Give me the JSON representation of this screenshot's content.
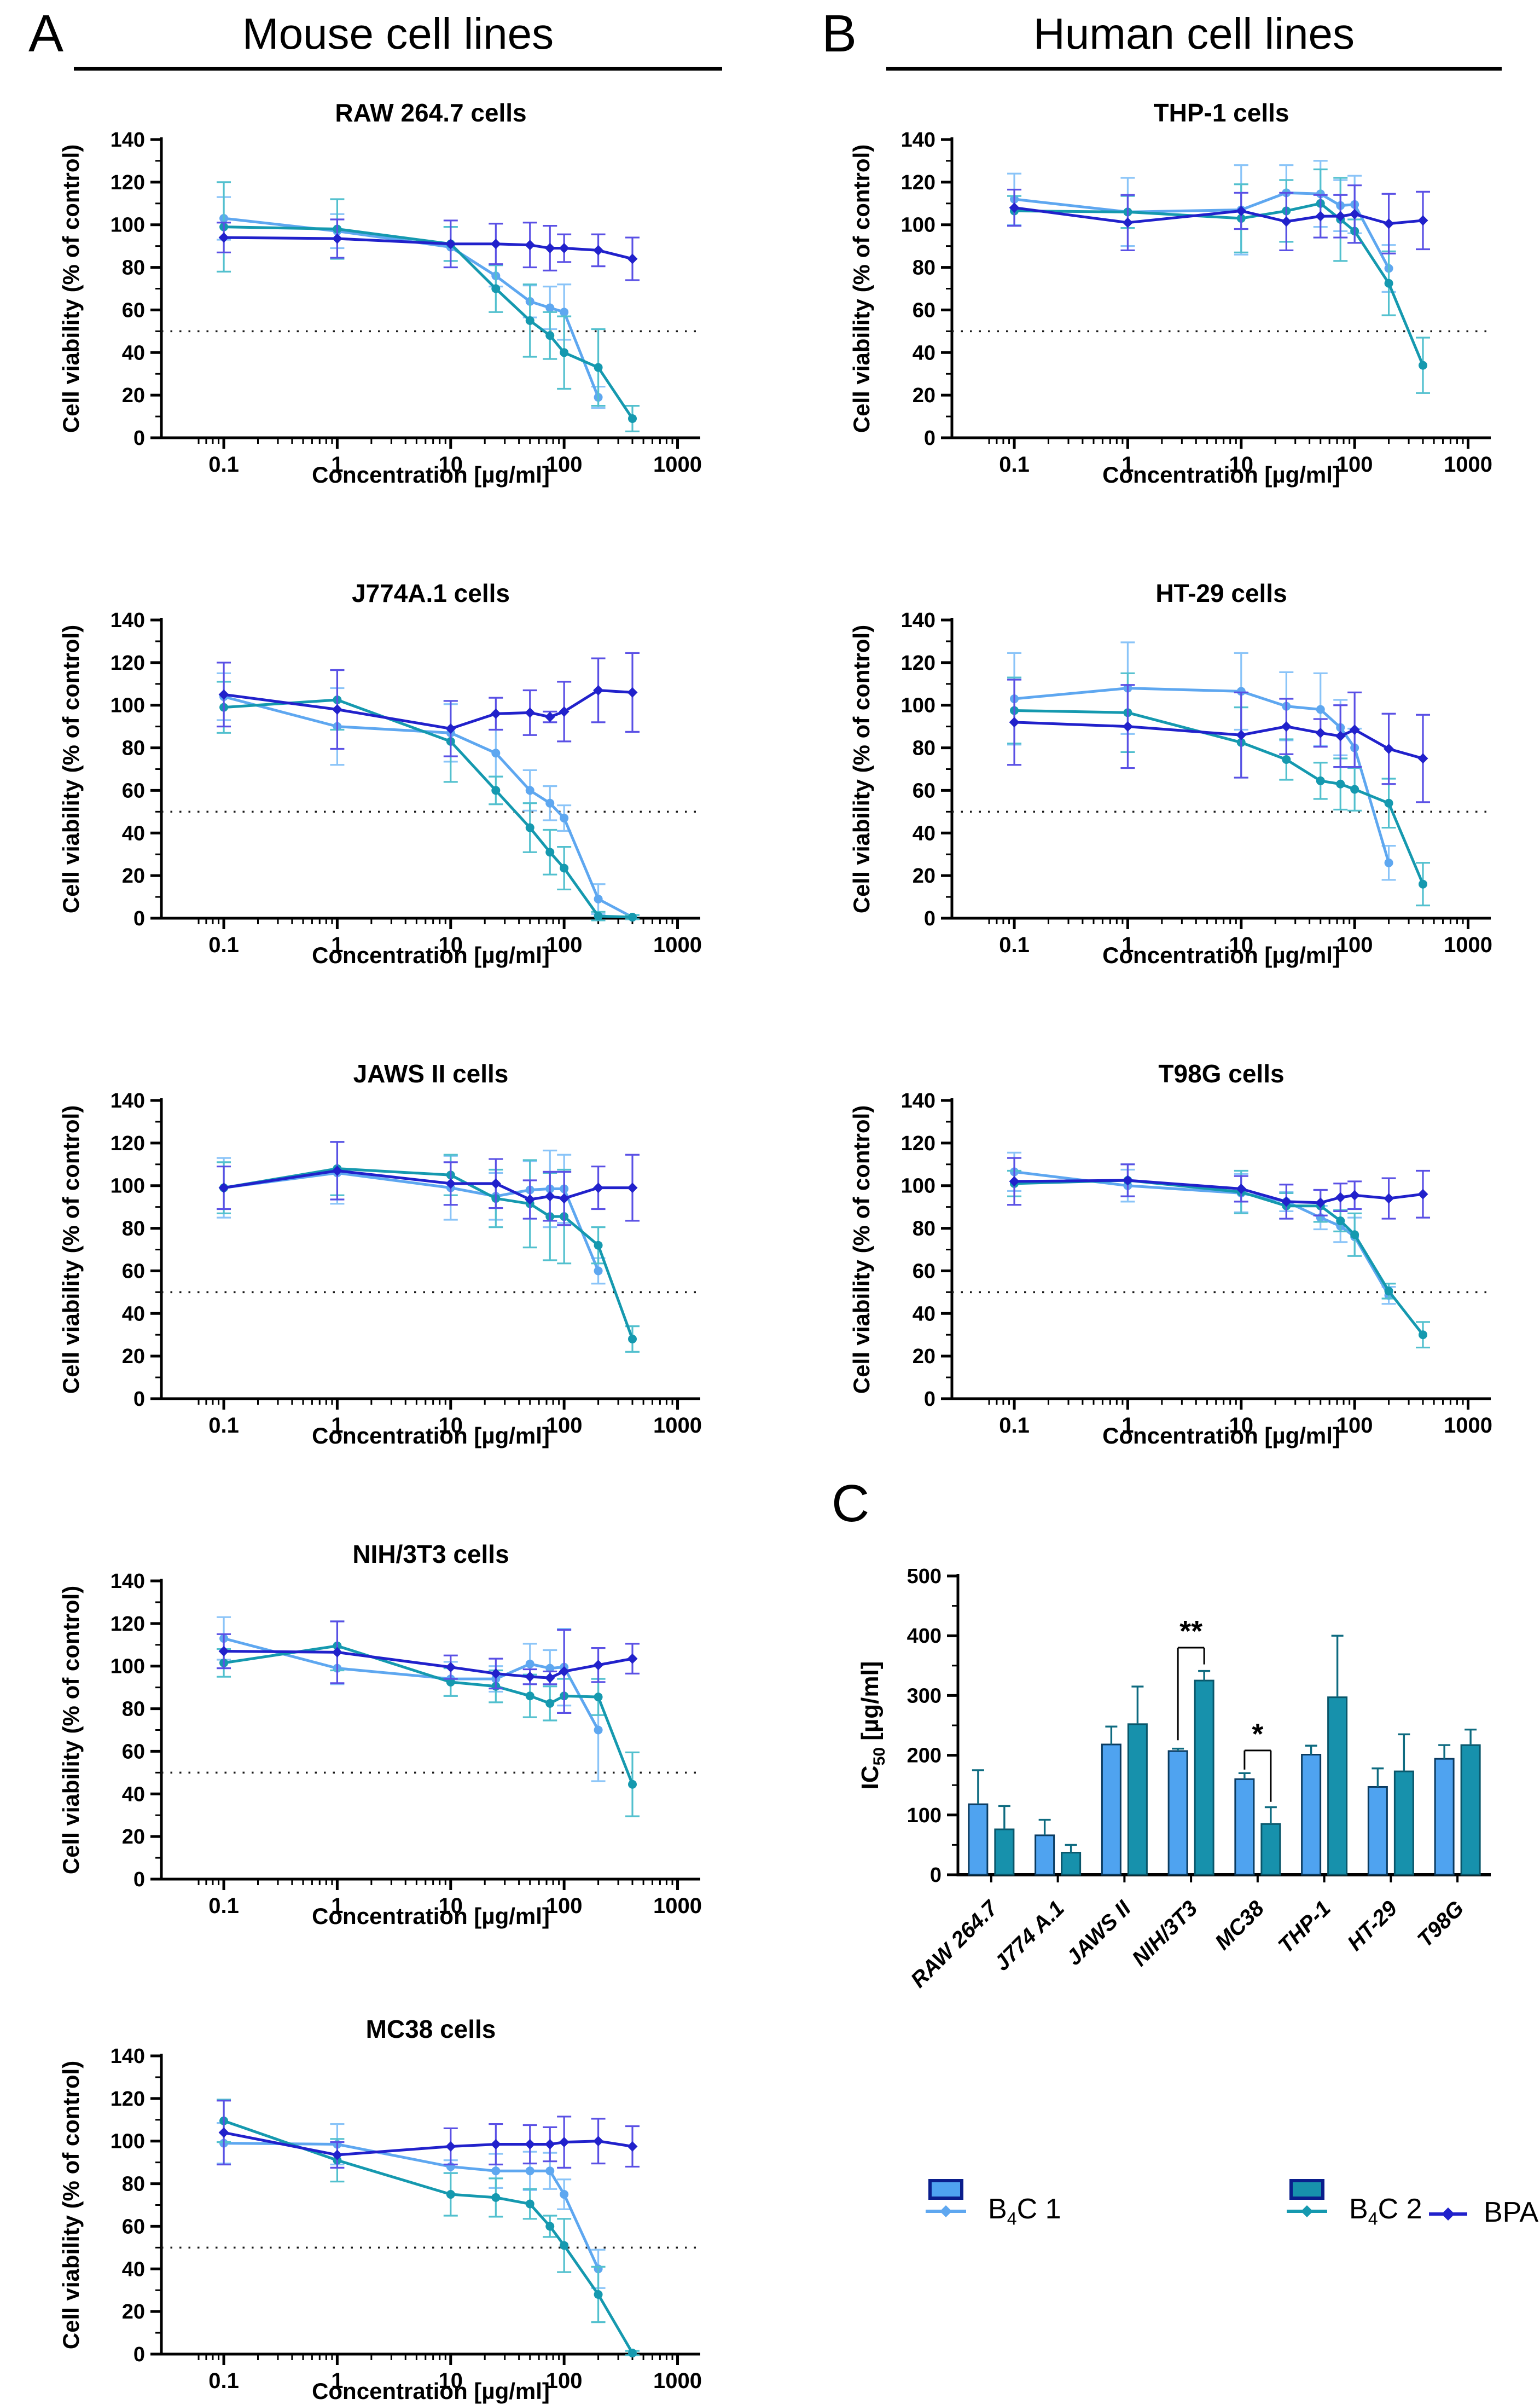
{
  "panels": {
    "a": {
      "letter": "A",
      "title": "Mouse cell lines"
    },
    "b": {
      "letter": "B",
      "title": "Human cell lines"
    },
    "c": {
      "letter": "C"
    }
  },
  "series_styles": {
    "b4c1": {
      "label": "B4C 1",
      "color": "#5EA7F0",
      "err_color": "#8AC4F8",
      "marker": "circle",
      "bar_fill": "#4FA3F0",
      "bar_stroke": "#0A3B60"
    },
    "b4c2": {
      "label": "B4C 2",
      "color": "#1599AF",
      "err_color": "#52C0CE",
      "marker": "circle",
      "bar_fill": "#1791AC",
      "bar_stroke": "#09566A"
    },
    "bpa": {
      "label": "BPA",
      "color": "#2121CB",
      "err_color": "#5A50E5",
      "marker": "diamond"
    }
  },
  "legend": {
    "items": [
      {
        "key": "b4c1",
        "pre": "B",
        "sub": "4",
        "post": "C 1",
        "swatch": true
      },
      {
        "key": "b4c2",
        "pre": "B",
        "sub": "4",
        "post": "C 2",
        "swatch": true
      },
      {
        "key": "bpa",
        "pre": "BPA",
        "sub": "",
        "post": "",
        "swatch": false
      }
    ]
  },
  "chart_data": {
    "line_defaults": {
      "type": "line",
      "xlabel": "Concentration [µg/ml]",
      "ylabel": "Cell viability (% of control)",
      "xscale": "log",
      "xlim": [
        0.1,
        1000
      ],
      "xticks": [
        "0.1",
        "1",
        "10",
        "100",
        "1000"
      ],
      "ylim": [
        0,
        140
      ],
      "ytick_step": 20,
      "dotted_line_y": 50,
      "grid": false
    },
    "line_charts": [
      {
        "id": "raw-264-7",
        "panel": "A",
        "title": "RAW 264.7 cells",
        "series": [
          {
            "key": "b4c1",
            "x": [
              0.1,
              1,
              10,
              25,
              50,
              75,
              100,
              200
            ],
            "y": [
              103,
              97,
              89.5,
              76,
              64,
              61,
              59,
              19
            ],
            "err": [
              10,
              8,
              9.5,
              5,
              7.5,
              10,
              13,
              5
            ]
          },
          {
            "key": "b4c2",
            "x": [
              0.1,
              1,
              10,
              25,
              50,
              75,
              100,
              200,
              400
            ],
            "y": [
              99,
              98,
              91,
              70,
              55,
              48,
              40,
              33,
              9
            ],
            "err": [
              21,
              14,
              8,
              11,
              17,
              11,
              17,
              18,
              6
            ]
          },
          {
            "key": "bpa",
            "x": [
              0.1,
              1,
              10,
              25,
              50,
              75,
              100,
              200,
              400
            ],
            "y": [
              94,
              93.5,
              91,
              91,
              90.5,
              89,
              89,
              88,
              84
            ],
            "err": [
              7,
              9,
              11,
              9.5,
              10.5,
              10.5,
              6.5,
              7.5,
              10
            ]
          }
        ]
      },
      {
        "id": "j774a-1",
        "panel": "A",
        "title": "J774A.1 cells",
        "series": [
          {
            "key": "b4c1",
            "x": [
              0.1,
              1,
              10,
              25,
              50,
              75,
              100,
              200,
              400
            ],
            "y": [
              104,
              90,
              87,
              77.5,
              60,
              54,
              47,
              9,
              0.5
            ],
            "err": [
              11,
              18,
              13.5,
              11,
              9.5,
              8,
              6,
              7,
              1
            ]
          },
          {
            "key": "b4c2",
            "x": [
              0.1,
              1,
              10,
              25,
              50,
              75,
              100,
              200,
              400
            ],
            "y": [
              99,
              102.5,
              83,
              60,
              42.5,
              31,
              23.5,
              1,
              0.5
            ],
            "err": [
              12,
              14,
              19,
              6.5,
              11.5,
              10.5,
              10,
              2,
              1
            ]
          },
          {
            "key": "bpa",
            "x": [
              0.1,
              1,
              10,
              25,
              50,
              75,
              100,
              200,
              400
            ],
            "y": [
              105,
              98,
              89,
              96,
              96.5,
              94.5,
              97,
              107,
              106
            ],
            "err": [
              15,
              18.5,
              13,
              7.5,
              10.5,
              2.5,
              14,
              15,
              18.5
            ]
          }
        ]
      },
      {
        "id": "jaws-ii",
        "panel": "A",
        "title": "JAWS II cells",
        "series": [
          {
            "key": "b4c1",
            "x": [
              0.1,
              1,
              10,
              25,
              50,
              75,
              100,
              200
            ],
            "y": [
              99,
              106,
              99,
              95,
              98,
              98.5,
              98.5,
              60
            ],
            "err": [
              14,
              14.5,
              15,
              11,
              13.5,
              18,
              16,
              6
            ]
          },
          {
            "key": "b4c2",
            "x": [
              0.1,
              1,
              10,
              25,
              50,
              75,
              100,
              200,
              400
            ],
            "y": [
              99,
              108,
              105,
              94,
              91.5,
              85.5,
              85.5,
              72,
              28
            ],
            "err": [
              12,
              12.5,
              9.5,
              13.5,
              20.5,
              20.5,
              22,
              8.5,
              6
            ]
          },
          {
            "key": "bpa",
            "x": [
              0.1,
              1,
              10,
              25,
              50,
              75,
              100,
              200,
              400
            ],
            "y": [
              99,
              107,
              101,
              101,
              93.5,
              95,
              94,
              99,
              99
            ],
            "err": [
              10,
              13.5,
              10,
              11.5,
              9,
              11.5,
              12.5,
              10,
              15.5
            ]
          }
        ]
      },
      {
        "id": "nih-3t3",
        "panel": "A",
        "title": "NIH/3T3 cells",
        "series": [
          {
            "key": "b4c1",
            "x": [
              0.1,
              1,
              10,
              25,
              50,
              75,
              100,
              200
            ],
            "y": [
              113,
              99,
              94,
              94,
              101,
              99,
              99.5,
              70
            ],
            "err": [
              10,
              7.5,
              8,
              6,
              9.5,
              8.5,
              18,
              24
            ]
          },
          {
            "key": "b4c2",
            "x": [
              0.1,
              1,
              10,
              25,
              50,
              75,
              100,
              200,
              400
            ],
            "y": [
              101.5,
              109.5,
              92.5,
              90.5,
              86,
              82.5,
              86,
              85.5,
              44.5
            ],
            "err": [
              6.5,
              11.5,
              6.5,
              7.5,
              10,
              8,
              8,
              8.5,
              15
            ]
          },
          {
            "key": "bpa",
            "x": [
              0.1,
              1,
              10,
              25,
              50,
              75,
              100,
              200,
              400
            ],
            "y": [
              107,
              106.5,
              99.5,
              96.5,
              95,
              94.5,
              97.5,
              100.5,
              103.5
            ],
            "err": [
              8,
              14.5,
              5.5,
              7,
              3.5,
              3,
              19.5,
              8,
              7
            ]
          }
        ]
      },
      {
        "id": "mc38",
        "panel": "A",
        "title": "MC38 cells",
        "series": [
          {
            "key": "b4c1",
            "x": [
              0.1,
              1,
              10,
              25,
              50,
              75,
              100,
              200
            ],
            "y": [
              99,
              98.5,
              88,
              86,
              86,
              86,
              75,
              40
            ],
            "err": [
              9.5,
              9.5,
              3,
              8,
              9,
              8.5,
              7,
              9
            ]
          },
          {
            "key": "b4c2",
            "x": [
              0.1,
              1,
              10,
              25,
              50,
              75,
              100,
              200,
              400
            ],
            "y": [
              109.5,
              91,
              75,
              73.5,
              70.5,
              60,
              51,
              28,
              0.5
            ],
            "err": [
              10,
              10,
              10,
              9,
              7,
              5,
              12.5,
              13,
              1
            ]
          },
          {
            "key": "bpa",
            "x": [
              0.1,
              1,
              10,
              25,
              50,
              75,
              100,
              200,
              400
            ],
            "y": [
              104,
              93.5,
              97.5,
              98.5,
              98.5,
              98.5,
              99.5,
              100,
              97.5
            ],
            "err": [
              15,
              6,
              8.5,
              9.5,
              9,
              8,
              12,
              10.5,
              9.5
            ]
          }
        ]
      },
      {
        "id": "thp-1",
        "panel": "B",
        "title": "THP-1 cells",
        "series": [
          {
            "key": "b4c1",
            "x": [
              0.1,
              1,
              10,
              25,
              50,
              75,
              100,
              200
            ],
            "y": [
              112,
              106,
              107,
              115,
              114.5,
              109,
              109.5,
              79.5
            ],
            "err": [
              12,
              16,
              21,
              13,
              15.5,
              12,
              13.5,
              11
            ]
          },
          {
            "key": "b4c2",
            "x": [
              0.1,
              1,
              10,
              25,
              50,
              75,
              100,
              200,
              400
            ],
            "y": [
              106.5,
              106,
              103,
              106.5,
              110,
              102.5,
              97,
              72.5,
              34
            ],
            "err": [
              7,
              7.5,
              16,
              14.5,
              16,
              19.5,
              5.5,
              15,
              13
            ]
          },
          {
            "key": "bpa",
            "x": [
              0.1,
              1,
              10,
              25,
              50,
              75,
              100,
              200,
              400
            ],
            "y": [
              108,
              101,
              106.5,
              101.5,
              104,
              104,
              105,
              100.5,
              102
            ],
            "err": [
              8.5,
              13,
              8.5,
              13.5,
              10,
              10,
              13.5,
              14,
              13.5
            ]
          }
        ]
      },
      {
        "id": "ht-29",
        "panel": "B",
        "title": "HT-29 cells",
        "series": [
          {
            "key": "b4c1",
            "x": [
              0.1,
              1,
              10,
              25,
              50,
              75,
              100,
              200
            ],
            "y": [
              103,
              108,
              106.5,
              99.5,
              98,
              89.5,
              80,
              26
            ],
            "err": [
              21.5,
              21.5,
              18,
              16,
              17,
              13,
              9,
              8
            ]
          },
          {
            "key": "b4c2",
            "x": [
              0.1,
              1,
              10,
              25,
              50,
              75,
              100,
              200,
              400
            ],
            "y": [
              97.5,
              96.5,
              82.5,
              74.5,
              64.5,
              63,
              60.5,
              54,
              16
            ],
            "err": [
              15.5,
              18.5,
              16.5,
              9.5,
              8.5,
              12,
              10,
              11.5,
              10
            ]
          },
          {
            "key": "bpa",
            "x": [
              0.1,
              1,
              10,
              25,
              50,
              75,
              100,
              200,
              400
            ],
            "y": [
              92,
              90,
              86,
              90,
              87,
              85.5,
              88.5,
              79.5,
              75
            ],
            "err": [
              20,
              19.5,
              20,
              13,
              6.5,
              14.5,
              17.5,
              16.5,
              20.5
            ]
          }
        ]
      },
      {
        "id": "t98g",
        "panel": "B",
        "title": "T98G cells",
        "series": [
          {
            "key": "b4c1",
            "x": [
              0.1,
              1,
              10,
              25,
              50,
              75,
              100,
              200
            ],
            "y": [
              106.5,
              100,
              96.5,
              92.5,
              85,
              81,
              76,
              48.5
            ],
            "err": [
              9,
              7.5,
              9,
              4.5,
              5.5,
              7.5,
              9,
              4
            ]
          },
          {
            "key": "b4c2",
            "x": [
              0.1,
              1,
              10,
              25,
              50,
              75,
              100,
              200,
              400
            ],
            "y": [
              101,
              102.5,
              97,
              90.5,
              90.5,
              83.5,
              77,
              50.5,
              30
            ],
            "err": [
              6,
              7.5,
              10,
              6,
              7.5,
              5,
              10,
              3.5,
              6
            ]
          },
          {
            "key": "bpa",
            "x": [
              0.1,
              1,
              10,
              25,
              50,
              75,
              100,
              200,
              400
            ],
            "y": [
              102,
              102.5,
              98.5,
              92.5,
              92,
              94.5,
              95.5,
              94,
              96
            ],
            "err": [
              11,
              7.5,
              6,
              8,
              6,
              6.5,
              6.5,
              9.5,
              11
            ]
          }
        ]
      }
    ],
    "bar_chart": {
      "type": "bar",
      "panel": "C",
      "ylabel_pre": "IC",
      "ylabel_sub": "50",
      "ylabel_post": " [µg/ml]",
      "ylim": [
        0,
        500
      ],
      "ytick_step": 100,
      "categories": [
        "RAW 264.7",
        "J774 A.1",
        "JAWS II",
        "NIH/3T3",
        "MC38",
        "THP-1",
        "HT-29",
        "T98G"
      ],
      "series": [
        {
          "key": "b4c1",
          "name": "B4C 1",
          "values": [
            118,
            66,
            218,
            207,
            160,
            201,
            147,
            194
          ],
          "err_up": [
            57,
            26,
            30,
            4,
            10,
            15,
            31,
            23
          ]
        },
        {
          "key": "b4c2",
          "name": "B4C 2",
          "values": [
            76,
            37,
            252,
            325,
            85,
            297,
            173,
            217
          ],
          "err_up": [
            39,
            13,
            63,
            16,
            28,
            103,
            62,
            26
          ]
        }
      ],
      "err_color": "#0E6B80",
      "significance": [
        {
          "category": "NIH/3T3",
          "label": "**",
          "y_from": 225,
          "y_top": 380,
          "y_drop": 352
        },
        {
          "category": "MC38",
          "label": "*",
          "y_from": 176,
          "y_top": 208,
          "y_drop": 122
        }
      ]
    }
  }
}
